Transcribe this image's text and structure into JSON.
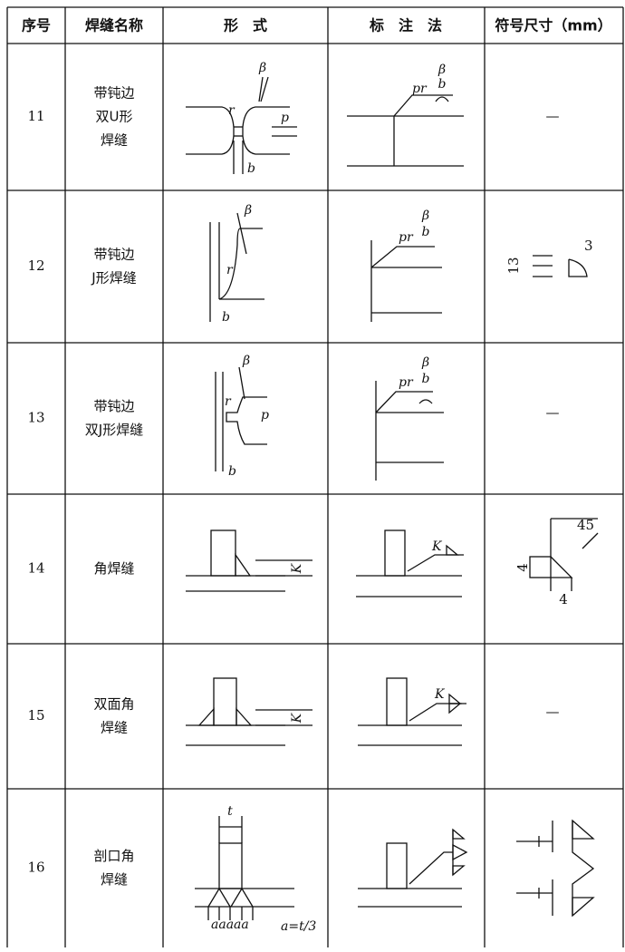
{
  "header": [
    "序号",
    "焊缝名称",
    "形　式",
    "标　注　法",
    "符号尺寸（mm）"
  ],
  "rows": [
    {
      "no": "11",
      "name": [
        "带钝边",
        "双U形",
        "焊缝"
      ],
      "form_labels": [
        "β",
        "r",
        "p",
        "b"
      ],
      "mark_labels": [
        "pr",
        "β",
        "b"
      ],
      "size": [
        "—"
      ]
    },
    {
      "no": "12",
      "name": [
        "带钝边",
        "J形焊缝"
      ],
      "form_labels": [
        "β",
        "r",
        "b"
      ],
      "mark_labels": [
        "pr",
        "β",
        "b"
      ],
      "size": [
        "13",
        "3"
      ]
    },
    {
      "no": "13",
      "name": [
        "带钝边",
        "双J形焊缝"
      ],
      "form_labels": [
        "β",
        "r",
        "p",
        "b"
      ],
      "mark_labels": [
        "pr",
        "β",
        "b"
      ],
      "size": [
        "—"
      ]
    },
    {
      "no": "14",
      "name": [
        "角焊缝"
      ],
      "form_labels": [
        "K"
      ],
      "mark_labels": [
        "K"
      ],
      "size": [
        "45",
        "4",
        "4"
      ]
    },
    {
      "no": "15",
      "name": [
        "双面角",
        "焊缝"
      ],
      "form_labels": [
        "K"
      ],
      "mark_labels": [
        "K"
      ],
      "size": [
        "—"
      ]
    },
    {
      "no": "16",
      "name": [
        "剖口角",
        "焊缝"
      ],
      "form_labels": [
        "t",
        "aaaaa",
        "a=t/3"
      ],
      "mark_labels": [],
      "size": []
    }
  ]
}
